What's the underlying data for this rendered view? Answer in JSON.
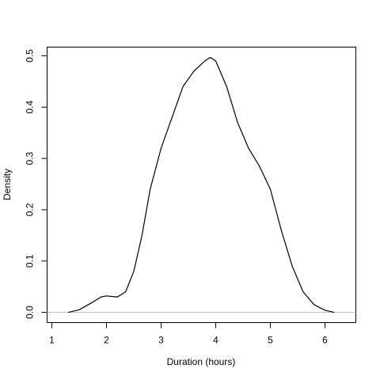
{
  "chart_data": {
    "type": "line",
    "xlabel": "Duration (hours)",
    "ylabel": "Density",
    "x": [
      1.3,
      1.5,
      1.75,
      1.9,
      2.0,
      2.2,
      2.35,
      2.5,
      2.65,
      2.8,
      3.0,
      3.2,
      3.4,
      3.6,
      3.8,
      3.9,
      4.0,
      4.2,
      4.4,
      4.6,
      4.8,
      5.0,
      5.2,
      5.4,
      5.6,
      5.8,
      6.0,
      6.17
    ],
    "values": [
      0.0,
      0.005,
      0.02,
      0.03,
      0.032,
      0.03,
      0.04,
      0.08,
      0.15,
      0.24,
      0.32,
      0.38,
      0.44,
      0.47,
      0.49,
      0.497,
      0.49,
      0.44,
      0.37,
      0.32,
      0.285,
      0.24,
      0.16,
      0.09,
      0.04,
      0.015,
      0.004,
      0.0
    ],
    "color": "#000000",
    "xlim": [
      0.913,
      6.565
    ],
    "ylim": [
      -0.02,
      0.517
    ],
    "xticks": [
      1,
      2,
      3,
      4,
      5,
      6
    ],
    "yticks": [
      {
        "value": 0,
        "label": "0.0"
      },
      0.1,
      0.2,
      0.3,
      0.4,
      0.5
    ],
    "zero_line": true
  }
}
